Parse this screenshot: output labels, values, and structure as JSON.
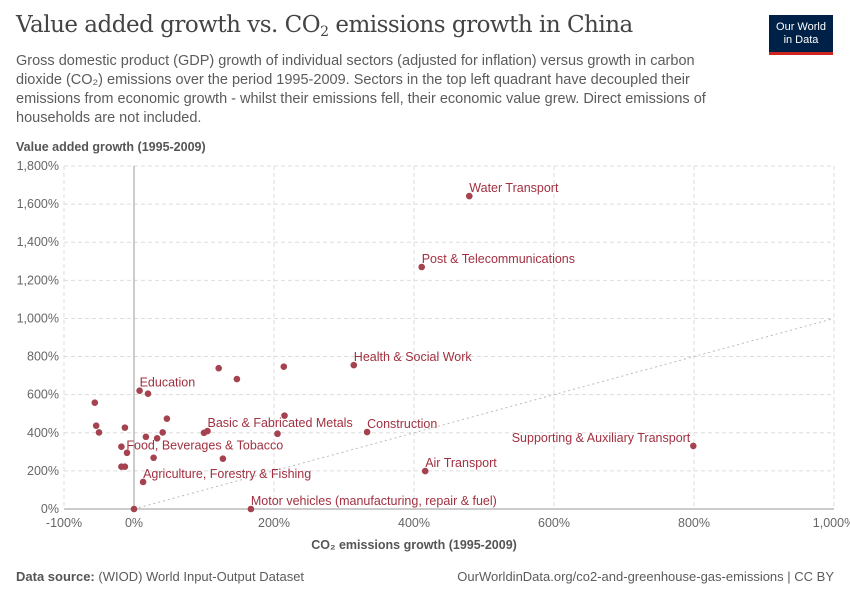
{
  "header": {
    "title_prefix": "Value added growth vs. CO",
    "title_sub": "2",
    "title_suffix": " emissions growth in China",
    "subtitle": "Gross domestic product (GDP) growth of individual sectors (adjusted for inflation) versus growth in carbon dioxide (CO₂) emissions over the period 1995-2009. Sectors in the top left quadrant have decoupled their emissions from economic growth - whilst their emissions fell, their economic value grew. Direct emissions of households are not included.",
    "logo_line1": "Our World",
    "logo_line2": "in Data"
  },
  "footer": {
    "source_label": "Data source:",
    "source": "(WIOD) World Input-Output Dataset",
    "url": "OurWorldinData.org/co2-and-greenhouse-gas-emissions | CC BY"
  },
  "colors": {
    "point": "#a4434f",
    "label": "#a23040",
    "grid": "#dddddd",
    "axis": "#999999"
  },
  "chart_data": {
    "type": "scatter",
    "xlabel": "CO₂ emissions growth (1995-2009)",
    "ylabel": "Value added growth (1995-2009)",
    "xlim": [
      -100,
      1000
    ],
    "ylim": [
      0,
      1800
    ],
    "x_ticks": [
      -100,
      0,
      200,
      400,
      600,
      800,
      1000
    ],
    "x_tick_labels": [
      "-100%",
      "0%",
      "200%",
      "400%",
      "600%",
      "800%",
      "1,000%"
    ],
    "y_ticks": [
      0,
      200,
      400,
      600,
      800,
      1000,
      1200,
      1400,
      1600,
      1800
    ],
    "y_tick_labels": [
      "0%",
      "200%",
      "400%",
      "600%",
      "800%",
      "1,000%",
      "1,200%",
      "1,400%",
      "1,600%",
      "1,800%"
    ],
    "grid": true,
    "reference_line": "y = x",
    "points": [
      {
        "name": "Water Transport",
        "x": 479,
        "y": 1642
      },
      {
        "name": "Post & Telecommunications",
        "x": 411,
        "y": 1270
      },
      {
        "name": "Health & Social Work",
        "x": 314,
        "y": 755
      },
      {
        "name": "Construction",
        "x": 333,
        "y": 404
      },
      {
        "name": "Supporting & Auxiliary Transport",
        "x": 799,
        "y": 331
      },
      {
        "name": "Air Transport",
        "x": 416,
        "y": 199
      },
      {
        "name": "Motor vehicles (manufacturing, repair & fuel)",
        "x": 167,
        "y": 0
      },
      {
        "name": "Education",
        "x": 8,
        "y": 621
      },
      {
        "name": "Basic & Fabricated Metals",
        "x": 105,
        "y": 409
      },
      {
        "name": "Food, Beverages & Tobacco",
        "x": -18,
        "y": 327
      },
      {
        "name": "Agriculture, Forestry & Fishing",
        "x": 13,
        "y": 142
      },
      {
        "name": "",
        "x": 0,
        "y": 0
      },
      {
        "name": "",
        "x": 121,
        "y": 739
      },
      {
        "name": "",
        "x": 147,
        "y": 682
      },
      {
        "name": "",
        "x": 214,
        "y": 747
      },
      {
        "name": "",
        "x": 20,
        "y": 605
      },
      {
        "name": "",
        "x": -56,
        "y": 558
      },
      {
        "name": "",
        "x": -54,
        "y": 437
      },
      {
        "name": "",
        "x": -50,
        "y": 402
      },
      {
        "name": "",
        "x": -13,
        "y": 427
      },
      {
        "name": "",
        "x": 47,
        "y": 474
      },
      {
        "name": "",
        "x": 41,
        "y": 402
      },
      {
        "name": "",
        "x": 17,
        "y": 379
      },
      {
        "name": "",
        "x": 33,
        "y": 371
      },
      {
        "name": "",
        "x": 100,
        "y": 400
      },
      {
        "name": "",
        "x": 215,
        "y": 490
      },
      {
        "name": "",
        "x": 205,
        "y": 395
      },
      {
        "name": "",
        "x": -10,
        "y": 295
      },
      {
        "name": "",
        "x": 28,
        "y": 269
      },
      {
        "name": "",
        "x": 127,
        "y": 264
      },
      {
        "name": "",
        "x": -18,
        "y": 222
      },
      {
        "name": "",
        "x": -13,
        "y": 222
      }
    ]
  }
}
